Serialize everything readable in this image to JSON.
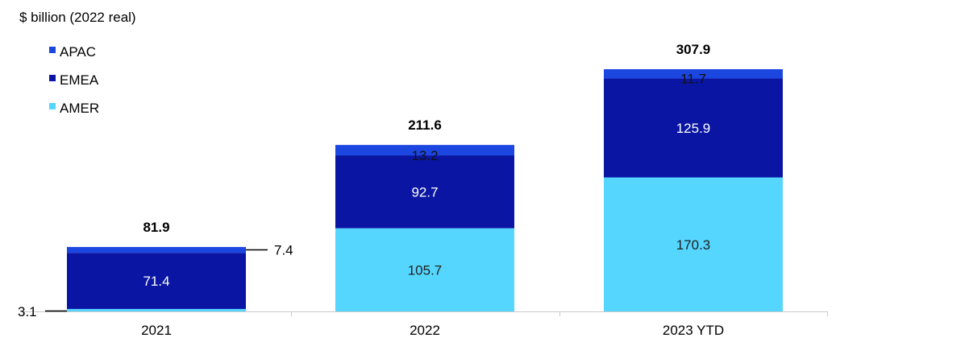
{
  "chart_data": {
    "type": "bar",
    "stacked": true,
    "ylabel": "$ billion (2022 real)",
    "categories": [
      "2021",
      "2022",
      "2023 YTD"
    ],
    "series": [
      {
        "name": "AMER",
        "color": "#55d6ff",
        "label_color": "#222222",
        "values": [
          3.1,
          105.7,
          170.3
        ]
      },
      {
        "name": "EMEA",
        "color": "#0a16a3",
        "label_color": "#ffffff",
        "values": [
          71.4,
          92.7,
          125.9
        ]
      },
      {
        "name": "APAC",
        "color": "#1c46e0",
        "label_color": "#111111",
        "values": [
          7.4,
          13.2,
          11.7
        ]
      }
    ],
    "totals": [
      81.9,
      211.6,
      307.9
    ],
    "legend_order": [
      "APAC",
      "EMEA",
      "AMER"
    ],
    "legend_position": "top-left",
    "grid": false
  }
}
